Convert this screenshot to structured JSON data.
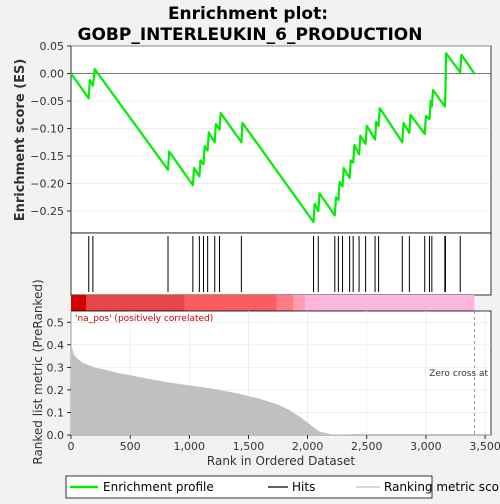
{
  "chart_data": {
    "type": "line",
    "title_line1": "Enrichment plot:",
    "title_line2": "GOBP_INTERLEUKIN_6_PRODUCTION",
    "top_panel": {
      "ylabel": "Enrichment score (ES)",
      "ylim": [
        -0.29,
        0.05
      ],
      "yticks": [
        0.05,
        0.0,
        -0.05,
        -0.1,
        -0.15,
        -0.2,
        -0.25
      ],
      "ytick_labels": [
        "0.05",
        "0.00",
        "−0.05",
        "−0.10",
        "−0.15",
        "−0.20",
        "−0.25"
      ],
      "es_curve": [
        [
          0,
          0.0
        ],
        [
          150,
          -0.045
        ],
        [
          160,
          -0.012
        ],
        [
          185,
          -0.022
        ],
        [
          200,
          0.008
        ],
        [
          820,
          -0.175
        ],
        [
          830,
          -0.142
        ],
        [
          1030,
          -0.203
        ],
        [
          1040,
          -0.172
        ],
        [
          1085,
          -0.187
        ],
        [
          1095,
          -0.158
        ],
        [
          1120,
          -0.165
        ],
        [
          1130,
          -0.132
        ],
        [
          1155,
          -0.14
        ],
        [
          1165,
          -0.107
        ],
        [
          1215,
          -0.125
        ],
        [
          1225,
          -0.092
        ],
        [
          1255,
          -0.102
        ],
        [
          1265,
          -0.072
        ],
        [
          1440,
          -0.125
        ],
        [
          1450,
          -0.09
        ],
        [
          2050,
          -0.27
        ],
        [
          2060,
          -0.237
        ],
        [
          2090,
          -0.25
        ],
        [
          2100,
          -0.218
        ],
        [
          2230,
          -0.258
        ],
        [
          2240,
          -0.225
        ],
        [
          2260,
          -0.23
        ],
        [
          2270,
          -0.197
        ],
        [
          2295,
          -0.205
        ],
        [
          2305,
          -0.172
        ],
        [
          2355,
          -0.19
        ],
        [
          2365,
          -0.158
        ],
        [
          2385,
          -0.162
        ],
        [
          2395,
          -0.13
        ],
        [
          2435,
          -0.147
        ],
        [
          2445,
          -0.113
        ],
        [
          2490,
          -0.128
        ],
        [
          2500,
          -0.095
        ],
        [
          2570,
          -0.12
        ],
        [
          2580,
          -0.088
        ],
        [
          2600,
          -0.095
        ],
        [
          2610,
          -0.063
        ],
        [
          2800,
          -0.125
        ],
        [
          2810,
          -0.09
        ],
        [
          2860,
          -0.108
        ],
        [
          2870,
          -0.075
        ],
        [
          2990,
          -0.11
        ],
        [
          3000,
          -0.077
        ],
        [
          3030,
          -0.083
        ],
        [
          3040,
          -0.05
        ],
        [
          3050,
          -0.06
        ],
        [
          3060,
          -0.03
        ],
        [
          3160,
          -0.06
        ],
        [
          3165,
          -0.028
        ],
        [
          3170,
          0.037
        ],
        [
          3290,
          0.002
        ],
        [
          3300,
          0.034
        ],
        [
          3410,
          0.0
        ]
      ]
    },
    "hits": [
      150,
      185,
      820,
      1030,
      1085,
      1120,
      1155,
      1215,
      1255,
      1440,
      2050,
      2090,
      2230,
      2260,
      2295,
      2355,
      2385,
      2435,
      2490,
      2570,
      2600,
      2800,
      2860,
      2990,
      3030,
      3050,
      3160,
      3165,
      3290
    ],
    "color_bar": [
      {
        "start": 0,
        "end": 130,
        "color": "#d50000"
      },
      {
        "start": 130,
        "end": 960,
        "color": "#e8464a"
      },
      {
        "start": 960,
        "end": 1740,
        "color": "#ff5d5d"
      },
      {
        "start": 1740,
        "end": 1880,
        "color": "#ff7b86"
      },
      {
        "start": 1880,
        "end": 1980,
        "color": "#ff9db1"
      },
      {
        "start": 1980,
        "end": 3410,
        "color": "#ffb6dc"
      }
    ],
    "bottom_panel": {
      "ylabel": "Ranked list metric (PreRanked)",
      "xlabel": "Rank in Ordered Dataset",
      "ylim": [
        0,
        0.55
      ],
      "yticks": [
        0.0,
        0.1,
        0.2,
        0.3,
        0.4,
        0.5
      ],
      "ytick_labels": [
        "0.0",
        "0.1",
        "0.2",
        "0.3",
        "0.4",
        "0.5"
      ],
      "xlim": [
        0,
        3550
      ],
      "xticks": [
        0,
        500,
        1000,
        1500,
        2000,
        2500,
        3000,
        3500
      ],
      "xtick_labels": [
        "0",
        "500",
        "1,000",
        "1,500",
        "2,000",
        "2,500",
        "3,000",
        "3,500"
      ],
      "metric_curve": [
        [
          0,
          0.41
        ],
        [
          20,
          0.36
        ],
        [
          50,
          0.34
        ],
        [
          100,
          0.32
        ],
        [
          200,
          0.3
        ],
        [
          400,
          0.275
        ],
        [
          600,
          0.255
        ],
        [
          800,
          0.235
        ],
        [
          1000,
          0.22
        ],
        [
          1200,
          0.205
        ],
        [
          1400,
          0.185
        ],
        [
          1600,
          0.16
        ],
        [
          1750,
          0.135
        ],
        [
          1850,
          0.11
        ],
        [
          1950,
          0.075
        ],
        [
          2050,
          0.035
        ],
        [
          2100,
          0.015
        ],
        [
          2200,
          0.003
        ],
        [
          2400,
          0.0
        ],
        [
          3410,
          0.0
        ]
      ],
      "zero_cross_rank": 3410,
      "annotation": "'na_pos' (positively correlated)",
      "zero_cross_label": "Zero cross at"
    },
    "legend": [
      {
        "label": "Enrichment profile",
        "color": "#00ee00"
      },
      {
        "label": "Hits",
        "color": "#000000"
      },
      {
        "label": "Ranking metric scores",
        "color": "#c0c0c0"
      }
    ]
  }
}
